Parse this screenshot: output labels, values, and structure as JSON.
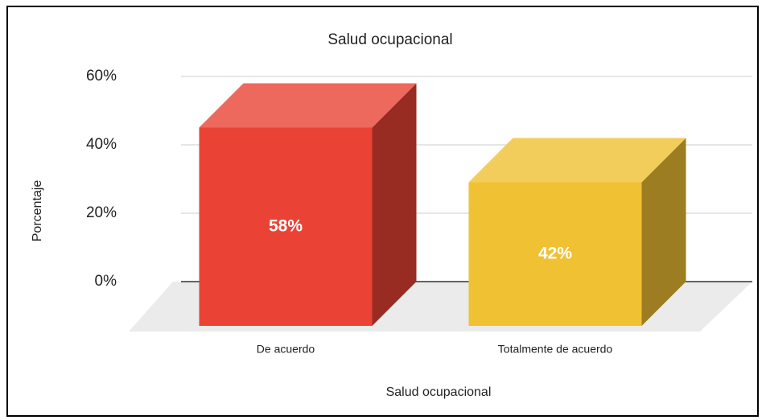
{
  "chart_data": {
    "type": "bar3d",
    "title": "Salud ocupacional",
    "x_label": "Salud ocupacional",
    "y_label": "Porcentaje",
    "categories": [
      "De acuerdo",
      "Totalmente de acuerdo"
    ],
    "values": [
      58,
      42
    ],
    "value_labels": [
      "58%",
      "42%"
    ],
    "colors": [
      "#ea4335",
      "#f0c132"
    ],
    "ylim": [
      0,
      60
    ],
    "yticks": [
      {
        "value": 0,
        "label": "0%"
      },
      {
        "value": 20,
        "label": "20%"
      },
      {
        "value": 40,
        "label": "40%"
      },
      {
        "value": 60,
        "label": "60%"
      }
    ],
    "grid": true
  }
}
